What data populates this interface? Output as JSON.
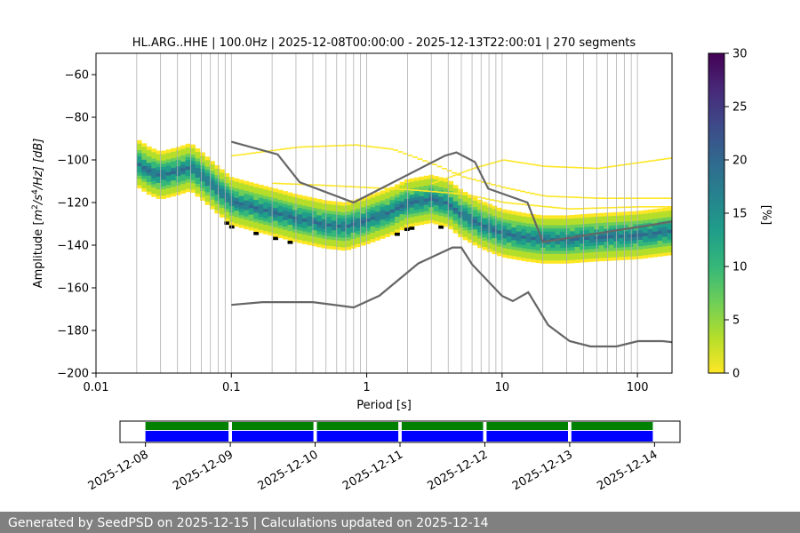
{
  "chart_data": {
    "type": "heatmap",
    "title": "HL.ARG..HHE | 100.0Hz | 2025-12-08T00:00:00 - 2025-12-13T22:00:01 | 270 segments",
    "xlabel": "Period [s]",
    "ylabel_parts": {
      "prefix": "Amplitude [",
      "m": "m",
      "exp1": "2",
      "mid": "/s",
      "exp2": "4",
      "suffix": "/Hz] [dB]"
    },
    "xscale": "log",
    "xlim": [
      0.01,
      180
    ],
    "ylim": [
      -200,
      -50
    ],
    "xticks": [
      0.01,
      0.1,
      1,
      10,
      100
    ],
    "xtick_labels": [
      "0.01",
      "0.1",
      "1",
      "10",
      "100"
    ],
    "yticks": [
      -200,
      -180,
      -160,
      -140,
      -120,
      -100,
      -80,
      -60
    ],
    "ytick_labels": [
      "−200",
      "−180",
      "−160",
      "−140",
      "−120",
      "−100",
      "−80",
      "−60"
    ],
    "grid": "vertical",
    "colorbar": {
      "label": "[%]",
      "range": [
        0,
        30
      ],
      "ticks": [
        0,
        5,
        10,
        15,
        20,
        25,
        30
      ],
      "tick_labels": [
        "0",
        "5",
        "10",
        "15",
        "20",
        "25",
        "30"
      ],
      "colormap": [
        "#fde725",
        "#b5de2b",
        "#6ece58",
        "#35b779",
        "#1f9e89",
        "#26828e",
        "#31688e",
        "#3e4989",
        "#482878",
        "#440154"
      ]
    },
    "mode_curve": {
      "period": [
        0.02,
        0.025,
        0.03,
        0.04,
        0.05,
        0.06,
        0.08,
        0.1,
        0.15,
        0.2,
        0.3,
        0.5,
        0.7,
        1.0,
        1.5,
        2.0,
        3.0,
        4.0,
        5.0,
        7.0,
        10,
        15,
        20,
        30,
        50,
        100,
        180
      ],
      "db": [
        -102,
        -106,
        -108,
        -106,
        -104,
        -108,
        -115,
        -120,
        -123,
        -125,
        -128,
        -131,
        -132,
        -129,
        -125,
        -121,
        -119,
        -121,
        -126,
        -131,
        -135,
        -137,
        -138,
        -138,
        -137,
        -136,
        -134
      ]
    },
    "spread_db": 12,
    "scatter_lines": [
      {
        "period": [
          0.1,
          0.3,
          0.8,
          1.5,
          3.0,
          5.0,
          10,
          20,
          50,
          180
        ],
        "db": [
          -98,
          -94,
          -93,
          -95,
          -102,
          -108,
          -113,
          -117,
          -118,
          -118
        ]
      },
      {
        "period": [
          0.2,
          0.5,
          1.0,
          2.0,
          5.0,
          10,
          30,
          100,
          180
        ],
        "db": [
          -111,
          -112,
          -113,
          -114,
          -116,
          -120,
          -123,
          -122,
          -122
        ]
      },
      {
        "period": [
          3.0,
          6.0,
          10,
          20,
          50,
          180
        ],
        "db": [
          -111,
          -104,
          -100,
          -103,
          -104,
          -99
        ]
      }
    ],
    "noise_models": {
      "high": {
        "period": [
          0.1,
          0.22,
          0.32,
          0.8,
          3.8,
          4.6,
          6.3,
          7.9,
          15.4,
          20,
          354
        ],
        "db": [
          -91.5,
          -97.4,
          -110.5,
          -120.0,
          -98.0,
          -96.5,
          -101.0,
          -113.5,
          -120.0,
          -138.5,
          -126.0
        ]
      },
      "low": {
        "period": [
          0.1,
          0.17,
          0.4,
          0.8,
          1.24,
          2.4,
          4.3,
          5.0,
          6.0,
          10,
          12,
          15.6,
          21.9,
          31.6,
          45,
          70,
          101,
          154,
          328
        ],
        "db": [
          -168.0,
          -166.7,
          -166.7,
          -169.2,
          -163.7,
          -148.6,
          -141.1,
          -141.1,
          -149.0,
          -163.8,
          -166.2,
          -162.1,
          -177.5,
          -185.0,
          -187.5,
          -187.5,
          -185.0,
          -185.0,
          -187.5
        ]
      },
      "color": "#666666"
    },
    "timeline": {
      "dates": [
        "2025-12-08",
        "2025-12-09",
        "2025-12-10",
        "2025-12-11",
        "2025-12-12",
        "2025-12-13",
        "2025-12-14"
      ],
      "range_days": [
        -0.3,
        6.3
      ],
      "coverage_days": [
        [
          0.0,
          0.98
        ],
        [
          1.02,
          1.98
        ],
        [
          2.02,
          2.98
        ],
        [
          3.02,
          3.98
        ],
        [
          4.02,
          4.98
        ],
        [
          5.02,
          5.98
        ]
      ],
      "colors": {
        "available": "#008000",
        "used": "#0000ff"
      }
    }
  },
  "footer": {
    "text": "Generated by SeedPSD on 2025-12-15 | Calculations updated on 2025-12-14"
  }
}
